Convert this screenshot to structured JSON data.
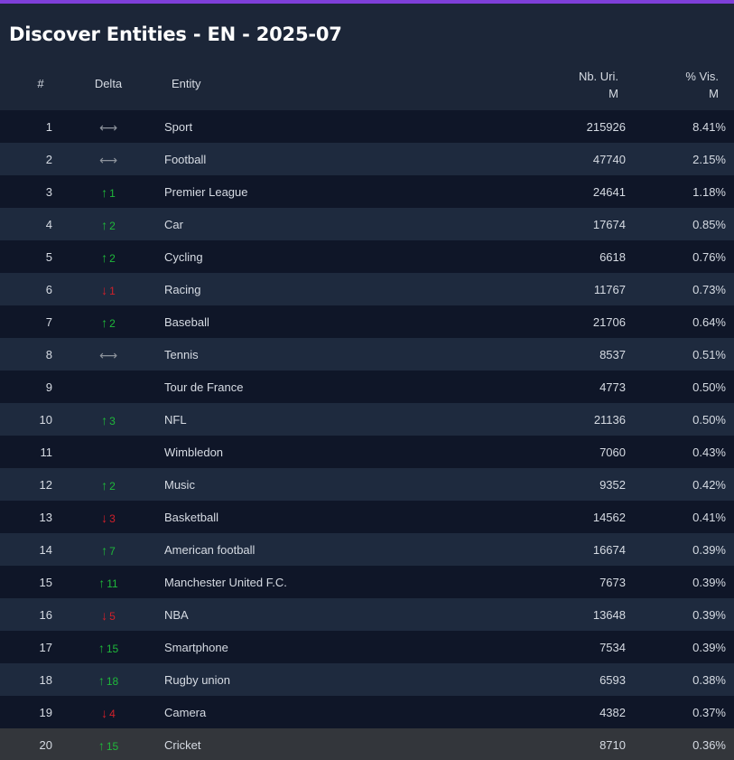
{
  "title": "Discover Entities - EN - 2025-07",
  "colors": {
    "accent": "#7e3fd9",
    "up": "#1fb83a",
    "down": "#d0202a",
    "neutral": "#8d939c"
  },
  "icons": {
    "up": "arrow-up-icon",
    "down": "arrow-down-icon",
    "same": "left-right-arrow-icon"
  },
  "columns": {
    "rank": "#",
    "delta": "Delta",
    "entity": "Entity",
    "nb_uri_line1": "Nb. Uri.",
    "nb_uri_line2": "M",
    "vis_line1": "% Vis.",
    "vis_line2": "M"
  },
  "rows": [
    {
      "rank": "1",
      "dir": "same",
      "delta": "",
      "entity": "Sport",
      "nb_uri": "215926",
      "vis": "8.41%"
    },
    {
      "rank": "2",
      "dir": "same",
      "delta": "",
      "entity": "Football",
      "nb_uri": "47740",
      "vis": "2.15%"
    },
    {
      "rank": "3",
      "dir": "up",
      "delta": "1",
      "entity": "Premier League",
      "nb_uri": "24641",
      "vis": "1.18%"
    },
    {
      "rank": "4",
      "dir": "up",
      "delta": "2",
      "entity": "Car",
      "nb_uri": "17674",
      "vis": "0.85%"
    },
    {
      "rank": "5",
      "dir": "up",
      "delta": "2",
      "entity": "Cycling",
      "nb_uri": "6618",
      "vis": "0.76%"
    },
    {
      "rank": "6",
      "dir": "down",
      "delta": "1",
      "entity": "Racing",
      "nb_uri": "11767",
      "vis": "0.73%"
    },
    {
      "rank": "7",
      "dir": "up",
      "delta": "2",
      "entity": "Baseball",
      "nb_uri": "21706",
      "vis": "0.64%"
    },
    {
      "rank": "8",
      "dir": "same",
      "delta": "",
      "entity": "Tennis",
      "nb_uri": "8537",
      "vis": "0.51%"
    },
    {
      "rank": "9",
      "dir": "none",
      "delta": "",
      "entity": "Tour de France",
      "nb_uri": "4773",
      "vis": "0.50%"
    },
    {
      "rank": "10",
      "dir": "up",
      "delta": "3",
      "entity": "NFL",
      "nb_uri": "21136",
      "vis": "0.50%"
    },
    {
      "rank": "11",
      "dir": "none",
      "delta": "",
      "entity": "Wimbledon",
      "nb_uri": "7060",
      "vis": "0.43%"
    },
    {
      "rank": "12",
      "dir": "up",
      "delta": "2",
      "entity": "Music",
      "nb_uri": "9352",
      "vis": "0.42%"
    },
    {
      "rank": "13",
      "dir": "down",
      "delta": "3",
      "entity": "Basketball",
      "nb_uri": "14562",
      "vis": "0.41%"
    },
    {
      "rank": "14",
      "dir": "up",
      "delta": "7",
      "entity": "American football",
      "nb_uri": "16674",
      "vis": "0.39%"
    },
    {
      "rank": "15",
      "dir": "up",
      "delta": "11",
      "entity": "Manchester United F.C.",
      "nb_uri": "7673",
      "vis": "0.39%"
    },
    {
      "rank": "16",
      "dir": "down",
      "delta": "5",
      "entity": "NBA",
      "nb_uri": "13648",
      "vis": "0.39%"
    },
    {
      "rank": "17",
      "dir": "up",
      "delta": "15",
      "entity": "Smartphone",
      "nb_uri": "7534",
      "vis": "0.39%"
    },
    {
      "rank": "18",
      "dir": "up",
      "delta": "18",
      "entity": "Rugby union",
      "nb_uri": "6593",
      "vis": "0.38%"
    },
    {
      "rank": "19",
      "dir": "down",
      "delta": "4",
      "entity": "Camera",
      "nb_uri": "4382",
      "vis": "0.37%"
    },
    {
      "rank": "20",
      "dir": "up",
      "delta": "15",
      "entity": "Cricket",
      "nb_uri": "8710",
      "vis": "0.36%",
      "highlighted": true
    }
  ]
}
